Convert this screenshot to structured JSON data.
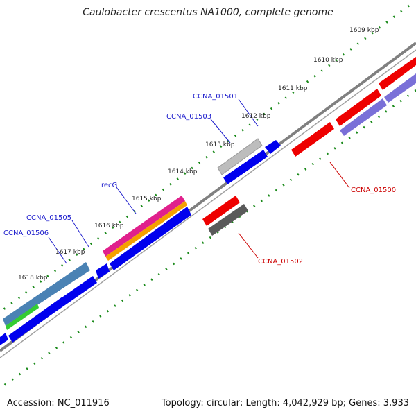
{
  "title": "Caulobacter crescentus NA1000, complete genome",
  "footer": {
    "accession": "Accession: NC_011916",
    "summary": "Topology: circular; Length: 4,042,929 bp; Genes: 3,933"
  },
  "ticks": [
    "1609 kbp",
    "1610 kbp",
    "1611 kbp",
    "1612 kbp",
    "1613 kbp",
    "1614 kbp",
    "1615 kbp",
    "1616 kbp",
    "1617 kbp",
    "1618 kbp"
  ],
  "gene_labels": {
    "ccna_01501": "CCNA_01501",
    "ccna_01503": "CCNA_01503",
    "recg": "recG",
    "ccna_01505": "CCNA_01505",
    "ccna_01506": "CCNA_01506",
    "ccna_01500": "CCNA_01500",
    "ccna_01502": "CCNA_01502"
  },
  "colors": {
    "label_forward": "#1a1acc",
    "label_reverse": "#cc0000",
    "tick_green": "#1a8a1a",
    "backbone": "#808080",
    "cds_blue": "#0000ee",
    "cds_red": "#ee0000",
    "cds_purple": "#7a70d8",
    "cds_gray": "#bdbdbd",
    "cds_dark_gray": "#5a5a5a",
    "cds_magenta": "#e0208c",
    "cds_orange": "#f5a000",
    "cds_steel": "#4a82b4",
    "cds_green": "#33cc33"
  }
}
